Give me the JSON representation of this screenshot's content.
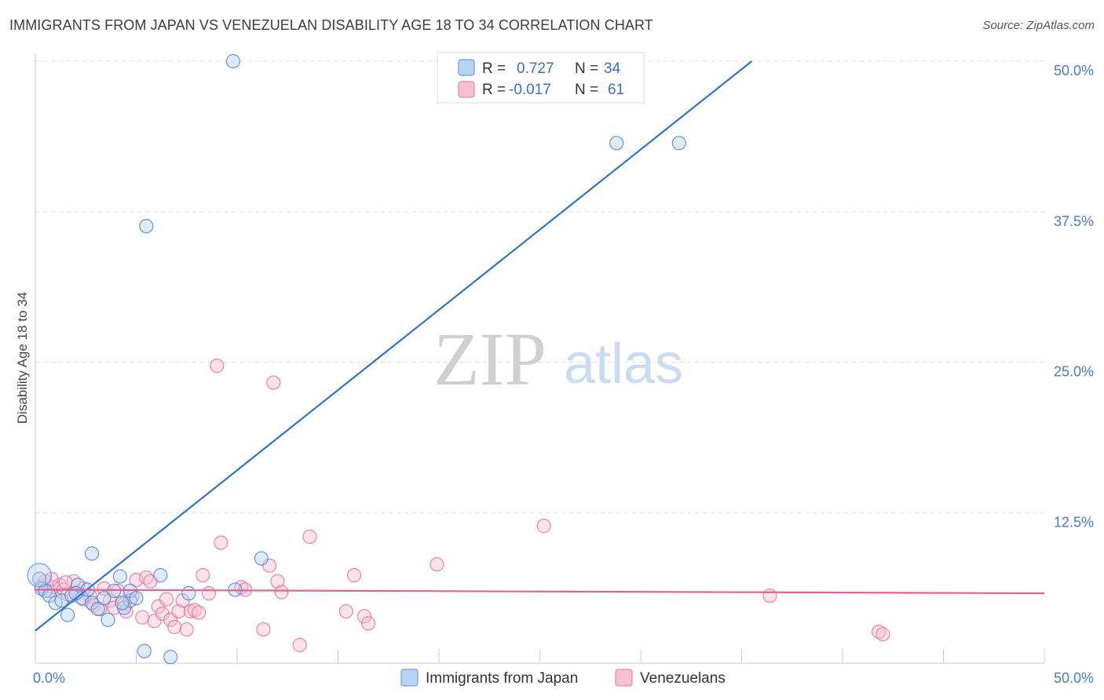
{
  "title": "IMMIGRANTS FROM JAPAN VS VENEZUELAN DISABILITY AGE 18 TO 34 CORRELATION CHART",
  "source": "Source: ZipAtlas.com",
  "watermark": {
    "zip": "ZIP",
    "atlas": "atlas"
  },
  "colors": {
    "blue": "#4a86d8",
    "blue_fill": "#b8d2f2",
    "pink": "#e8709a",
    "pink_fill": "#f6bfd2",
    "tick_text": "#4a7cc7",
    "grid": "#dddddd"
  },
  "legend": {
    "rows": [
      {
        "r_label": "R =",
        "r_value": "0.727",
        "n_label": "N =",
        "n_value": "34"
      },
      {
        "r_label": "R =",
        "r_value": "-0.017",
        "n_label": "N =",
        "n_value": "61"
      }
    ]
  },
  "chart_data": {
    "type": "scatter",
    "ylabel": "Disability Age 18 to 34",
    "xlim": [
      0,
      50
    ],
    "ylim": [
      0,
      50
    ],
    "x_tick_labels": [
      "0.0%",
      "50.0%"
    ],
    "y_ticks": [
      12.5,
      25.0,
      37.5,
      50.0
    ],
    "y_tick_labels": [
      "12.5%",
      "25.0%",
      "37.5%",
      "50.0%"
    ],
    "series": [
      {
        "name": "Immigrants from Japan",
        "color": "blue",
        "points": [
          [
            9.8,
            50.0
          ],
          [
            28.8,
            43.2
          ],
          [
            31.9,
            43.2
          ],
          [
            5.5,
            36.3
          ],
          [
            0.2,
            7.0
          ],
          [
            0.3,
            6.2
          ],
          [
            0.5,
            6.0
          ],
          [
            0.7,
            5.6
          ],
          [
            1.0,
            5.0
          ],
          [
            1.3,
            5.2
          ],
          [
            1.6,
            4.0
          ],
          [
            1.8,
            5.6
          ],
          [
            2.1,
            6.5
          ],
          [
            2.3,
            5.4
          ],
          [
            2.6,
            6.1
          ],
          [
            2.8,
            5.0
          ],
          [
            2.8,
            9.1
          ],
          [
            3.1,
            4.5
          ],
          [
            3.4,
            5.4
          ],
          [
            3.6,
            3.6
          ],
          [
            3.9,
            6.0
          ],
          [
            4.2,
            7.2
          ],
          [
            4.4,
            4.6
          ],
          [
            4.7,
            5.2
          ],
          [
            4.7,
            6.0
          ],
          [
            5.0,
            5.4
          ],
          [
            6.2,
            7.3
          ],
          [
            7.6,
            5.8
          ],
          [
            9.9,
            6.1
          ],
          [
            11.2,
            8.7
          ],
          [
            6.7,
            0.5
          ],
          [
            5.4,
            1.0
          ],
          [
            4.3,
            5.0
          ],
          [
            2.0,
            5.8
          ]
        ],
        "trend": {
          "x": [
            0,
            35.5
          ],
          "y": [
            2.7,
            50.0
          ]
        }
      },
      {
        "name": "Venezuelans",
        "color": "pink",
        "points": [
          [
            0.3,
            6.4
          ],
          [
            0.5,
            6.8
          ],
          [
            0.7,
            6.0
          ],
          [
            0.9,
            6.3
          ],
          [
            1.2,
            6.5
          ],
          [
            1.4,
            6.1
          ],
          [
            1.6,
            5.7
          ],
          [
            1.9,
            6.8
          ],
          [
            2.1,
            5.9
          ],
          [
            2.4,
            5.3
          ],
          [
            2.7,
            5.6
          ],
          [
            2.9,
            4.8
          ],
          [
            3.2,
            4.5
          ],
          [
            3.4,
            6.2
          ],
          [
            3.7,
            5.2
          ],
          [
            3.9,
            4.6
          ],
          [
            4.1,
            6.0
          ],
          [
            4.4,
            4.9
          ],
          [
            4.5,
            4.3
          ],
          [
            4.8,
            5.5
          ],
          [
            5.0,
            6.9
          ],
          [
            5.3,
            3.8
          ],
          [
            5.5,
            7.1
          ],
          [
            5.7,
            6.8
          ],
          [
            5.9,
            3.5
          ],
          [
            6.1,
            4.7
          ],
          [
            6.3,
            4.1
          ],
          [
            6.5,
            5.3
          ],
          [
            6.7,
            3.6
          ],
          [
            6.9,
            3.0
          ],
          [
            7.1,
            4.3
          ],
          [
            7.3,
            5.2
          ],
          [
            7.5,
            2.8
          ],
          [
            7.7,
            4.3
          ],
          [
            7.9,
            4.4
          ],
          [
            8.1,
            4.2
          ],
          [
            8.3,
            7.3
          ],
          [
            8.6,
            5.8
          ],
          [
            9.0,
            24.7
          ],
          [
            9.2,
            10.0
          ],
          [
            10.2,
            6.3
          ],
          [
            10.4,
            6.1
          ],
          [
            11.3,
            2.8
          ],
          [
            11.6,
            8.1
          ],
          [
            11.8,
            23.3
          ],
          [
            12.0,
            6.8
          ],
          [
            12.2,
            5.9
          ],
          [
            13.1,
            1.5
          ],
          [
            13.6,
            10.5
          ],
          [
            15.4,
            4.3
          ],
          [
            15.8,
            7.3
          ],
          [
            16.3,
            3.9
          ],
          [
            16.5,
            3.3
          ],
          [
            19.9,
            8.2
          ],
          [
            25.2,
            11.4
          ],
          [
            36.4,
            5.6
          ],
          [
            41.8,
            2.6
          ],
          [
            42.0,
            2.4
          ],
          [
            2.4,
            6.2
          ],
          [
            0.8,
            7.0
          ],
          [
            1.5,
            6.7
          ]
        ],
        "trend": {
          "x": [
            0,
            50
          ],
          "y": [
            6.1,
            5.8
          ]
        }
      }
    ]
  }
}
